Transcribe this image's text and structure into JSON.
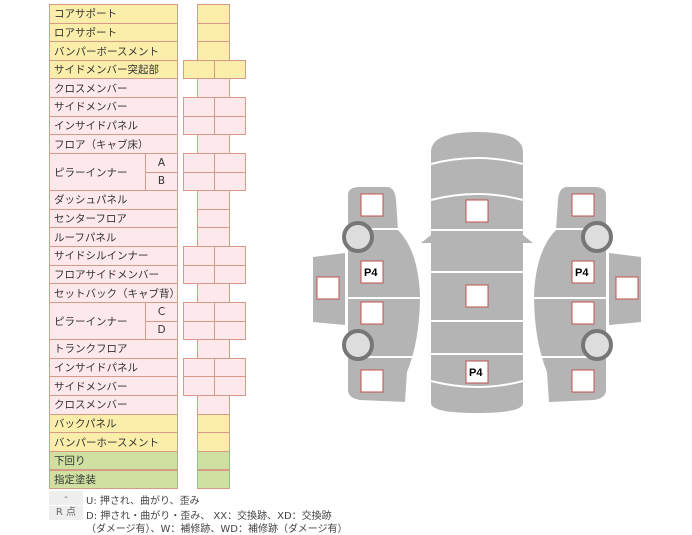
{
  "colors": {
    "yellow": "#fbeeaa",
    "pink": "#fde9ec",
    "green": "#cfe0a0",
    "border": "#d79a86",
    "body": "#b4b4b4"
  },
  "rows": [
    {
      "label": "コアサポート",
      "color": "yellow",
      "cells": "single"
    },
    {
      "label": "ロアサポート",
      "color": "yellow",
      "cells": "single"
    },
    {
      "label": "バンパーボースメント",
      "color": "yellow",
      "cells": "single"
    },
    {
      "label": "サイドメンバー突起部",
      "color": "yellow",
      "cells": "double"
    },
    {
      "label": "クロスメンバー",
      "color": "pink",
      "cells": "single"
    },
    {
      "label": "サイドメンバー",
      "color": "pink",
      "cells": "double"
    },
    {
      "label": "インサイドパネル",
      "color": "pink",
      "cells": "double"
    },
    {
      "label": "フロア（キャブ床）",
      "color": "pink",
      "cells": "single"
    },
    {
      "label": "ピラーインナー",
      "sub": "A",
      "color": "pink",
      "cells": "double",
      "span": 2
    },
    {
      "label": "",
      "sub": "B",
      "color": "pink",
      "cells": "double"
    },
    {
      "label": "ダッシュパネル",
      "color": "pink",
      "cells": "single"
    },
    {
      "label": "センターフロア",
      "color": "pink",
      "cells": "single"
    },
    {
      "label": "ルーフパネル",
      "color": "pink",
      "cells": "single"
    },
    {
      "label": "サイドシルインナー",
      "color": "pink",
      "cells": "double"
    },
    {
      "label": "フロアサイドメンバー",
      "color": "pink",
      "cells": "double"
    },
    {
      "label": "セットバック（キャブ背）",
      "color": "pink",
      "cells": "single"
    },
    {
      "label": "ピラーインナー",
      "sub": "C",
      "color": "pink",
      "cells": "double",
      "span": 2
    },
    {
      "label": "",
      "sub": "D",
      "color": "pink",
      "cells": "double"
    },
    {
      "label": "トランクフロア",
      "color": "pink",
      "cells": "single"
    },
    {
      "label": "インサイドパネル",
      "color": "pink",
      "cells": "double"
    },
    {
      "label": "サイドメンバー",
      "color": "pink",
      "cells": "double"
    },
    {
      "label": "クロスメンバー",
      "color": "pink",
      "cells": "single"
    },
    {
      "label": "バックパネル",
      "color": "yellow",
      "cells": "single"
    },
    {
      "label": "バンパーホースメント",
      "color": "yellow",
      "cells": "single"
    },
    {
      "label": "下回り",
      "color": "green",
      "cells": "single"
    },
    {
      "label": "指定塗装",
      "color": "green",
      "cells": "single"
    }
  ],
  "legend": [
    {
      "key": "-",
      "text": "U: 押され、曲がり、歪み"
    },
    {
      "key": "R 点",
      "text": "D: 押され・曲がり・歪み、 XX：交換跡、XD：交換跡",
      "text2": "（ダメージ有）、W：補修跡、WD：補修跡（ダメージ有）"
    }
  ],
  "diagram": {
    "marks": {
      "left_front_door": "P4",
      "right_front_door": "P4",
      "center_rear": "P4"
    }
  }
}
